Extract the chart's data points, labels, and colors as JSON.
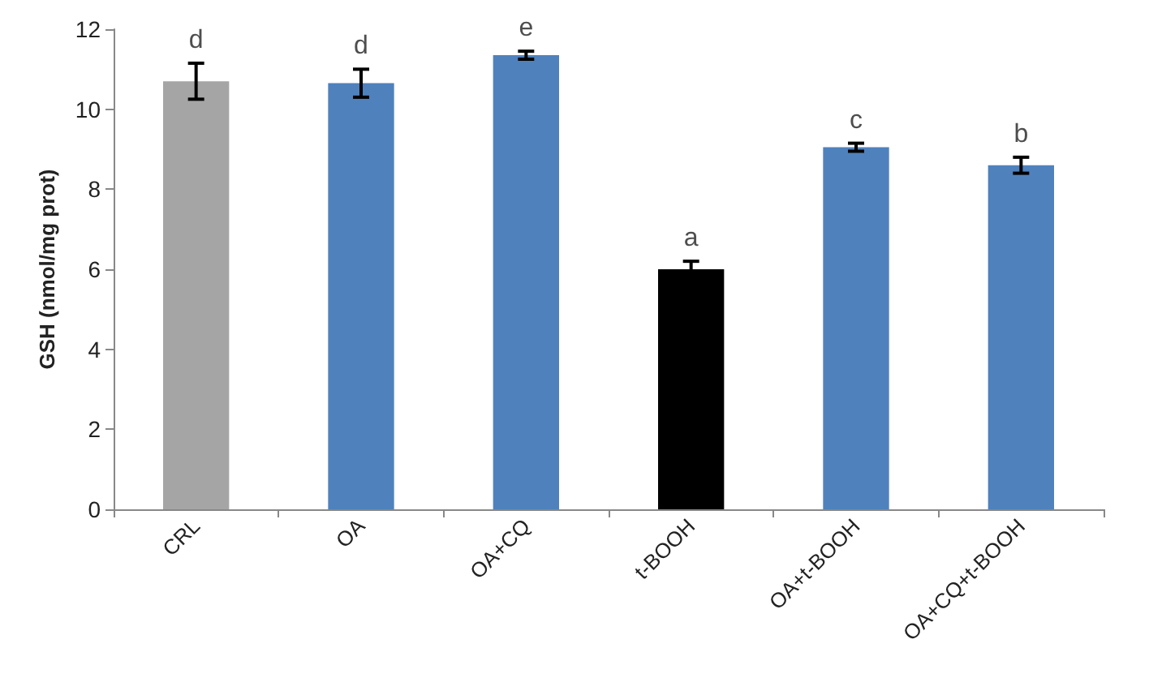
{
  "chart_data": {
    "type": "bar",
    "ylabel": "GSH (nmol/mg prot)",
    "categories": [
      "CRL",
      "OA",
      "OA+CQ",
      "t-BOOH",
      "OA+t-BOOH",
      "OA+CQ+t-BOOH"
    ],
    "values": [
      10.7,
      10.65,
      11.35,
      6.0,
      9.05,
      8.6
    ],
    "colors": [
      "#a5a5a5",
      "#4f81bd",
      "#4f81bd",
      "#000000",
      "#4f81bd",
      "#4f81bd"
    ],
    "errors": [
      0.45,
      0.35,
      0.1,
      0.2,
      0.1,
      0.2
    ],
    "ylim": [
      0,
      12
    ],
    "yticks": [
      0,
      2,
      4,
      6,
      8,
      10,
      12
    ],
    "grid": false,
    "annotations": [
      {
        "text": "d",
        "x": "CRL",
        "y": 11.15
      },
      {
        "text": "d",
        "x": "OA",
        "y": 11.0
      },
      {
        "text": "e",
        "x": "OA+CQ",
        "y": 11.45
      },
      {
        "text": "a",
        "x": "t-BOOH",
        "y": 6.2
      },
      {
        "text": "c",
        "x": "OA+t-BOOH",
        "y": 9.15
      },
      {
        "text": "b",
        "x": "OA+CQ+t-BOOH",
        "y": 8.8
      }
    ]
  }
}
